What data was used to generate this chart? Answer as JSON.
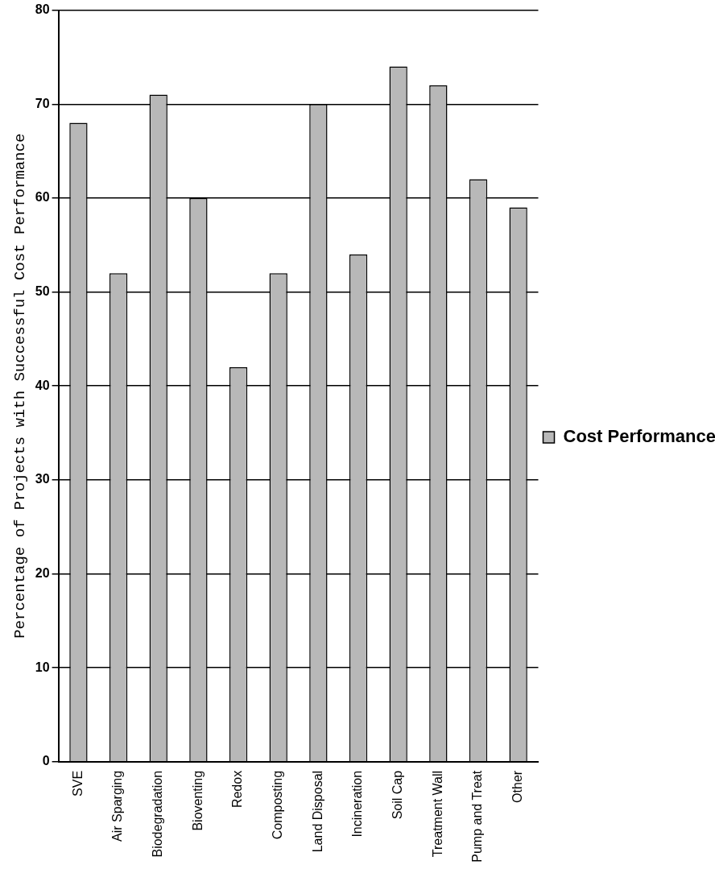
{
  "chart_data": {
    "type": "bar",
    "ylabel": "Percentage of Projects with Successful Cost Performance",
    "categories": [
      "SVE",
      "Air Sparging",
      "Biodegradation",
      "Bioventing",
      "Redox",
      "Composting",
      "Land Disposal",
      "Incineration",
      "Soil Cap",
      "Treatment Wall",
      "Pump and Treat",
      "Other"
    ],
    "series": [
      {
        "name": "Cost Performance",
        "color": "#b8b8b8",
        "values": [
          68,
          52,
          71,
          60,
          42,
          52,
          70,
          54,
          74,
          72,
          62,
          59
        ]
      }
    ],
    "ylim": [
      0,
      80
    ],
    "yticks": [
      0,
      10,
      20,
      30,
      40,
      50,
      60,
      70,
      80
    ],
    "grid": "y",
    "legend": "right"
  }
}
